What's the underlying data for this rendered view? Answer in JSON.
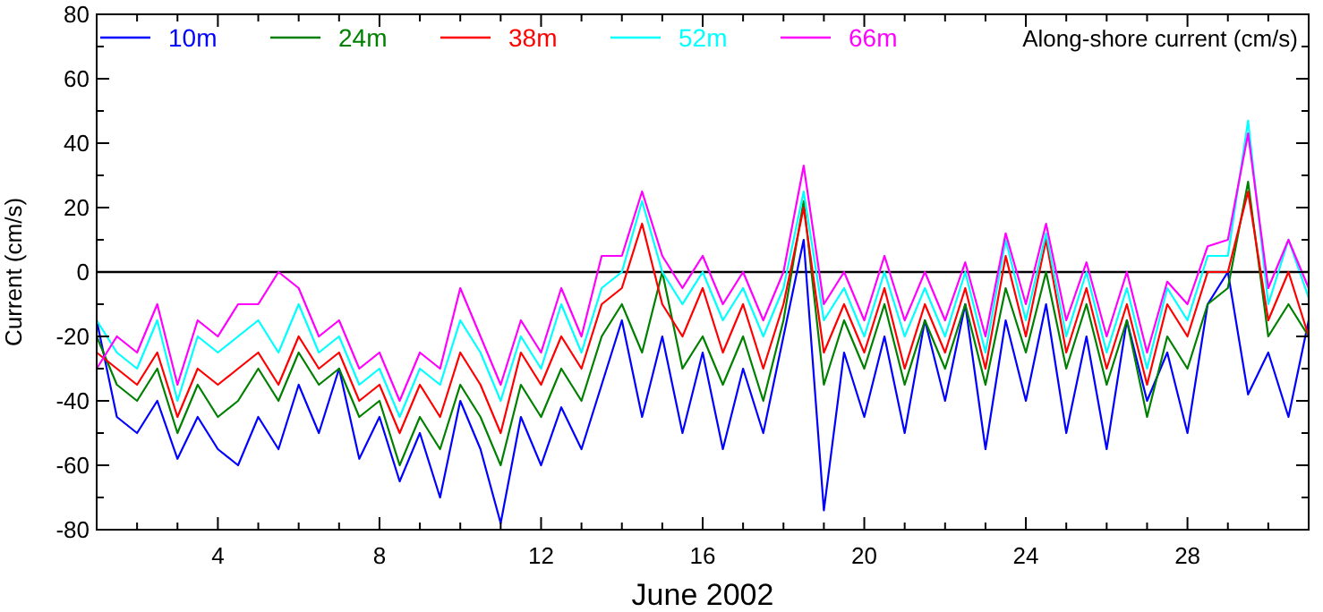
{
  "chart_data": {
    "type": "line",
    "xlabel": "June 2002",
    "ylabel": "Current (cm/s)",
    "annotations": [
      "Along-shore current (cm/s)"
    ],
    "x": [
      1,
      1.5,
      2,
      2.5,
      3,
      3.5,
      4,
      4.5,
      5,
      5.5,
      6,
      6.5,
      7,
      7.5,
      8,
      8.5,
      9,
      9.5,
      10,
      10.5,
      11,
      11.5,
      12,
      12.5,
      13,
      13.5,
      14,
      14.5,
      15,
      15.5,
      16,
      16.5,
      17,
      17.5,
      18,
      18.5,
      19,
      19.5,
      20,
      20.5,
      21,
      21.5,
      22,
      22.5,
      23,
      23.5,
      24,
      24.5,
      25,
      25.5,
      26,
      26.5,
      27,
      27.5,
      28,
      28.5,
      29,
      29.5,
      30,
      30.5,
      31
    ],
    "series": [
      {
        "name": "10m",
        "color": "#0000ff",
        "values": [
          -15,
          -45,
          -50,
          -40,
          -58,
          -45,
          -55,
          -60,
          -45,
          -55,
          -35,
          -50,
          -30,
          -58,
          -45,
          -65,
          -50,
          -70,
          -40,
          -55,
          -78,
          -45,
          -60,
          -42,
          -55,
          -35,
          -15,
          -45,
          -20,
          -50,
          -25,
          -55,
          -30,
          -50,
          -20,
          10,
          -74,
          -25,
          -45,
          -20,
          -50,
          -15,
          -40,
          -10,
          -55,
          -15,
          -40,
          -10,
          -50,
          -20,
          -55,
          -15,
          -40,
          -25,
          -50,
          -10,
          0,
          -38,
          -25,
          -45,
          -15
        ]
      },
      {
        "name": "24m",
        "color": "#008000",
        "values": [
          -20,
          -35,
          -40,
          -30,
          -50,
          -35,
          -45,
          -40,
          -30,
          -40,
          -25,
          -35,
          -30,
          -45,
          -40,
          -60,
          -45,
          -55,
          -35,
          -45,
          -60,
          -35,
          -45,
          -30,
          -40,
          -20,
          -10,
          -25,
          0,
          -30,
          -20,
          -35,
          -20,
          -40,
          -15,
          22,
          -35,
          -15,
          -30,
          -10,
          -35,
          -15,
          -30,
          -10,
          -35,
          -5,
          -25,
          0,
          -30,
          -10,
          -35,
          -15,
          -45,
          -20,
          -30,
          -10,
          -5,
          28,
          -20,
          -10,
          -20
        ]
      },
      {
        "name": "38m",
        "color": "#ff0000",
        "values": [
          -25,
          -30,
          -35,
          -25,
          -45,
          -30,
          -35,
          -30,
          -25,
          -35,
          -20,
          -30,
          -25,
          -40,
          -35,
          -50,
          -35,
          -45,
          -25,
          -35,
          -50,
          -25,
          -35,
          -20,
          -30,
          -10,
          -5,
          15,
          -10,
          -20,
          -5,
          -25,
          -10,
          -30,
          -10,
          20,
          -25,
          -10,
          -25,
          -5,
          -30,
          -10,
          -25,
          -5,
          -30,
          5,
          -20,
          10,
          -25,
          -5,
          -30,
          -10,
          -35,
          -10,
          -20,
          0,
          0,
          25,
          -15,
          0,
          -20
        ]
      },
      {
        "name": "52m",
        "color": "#00ffff",
        "values": [
          -15,
          -25,
          -30,
          -15,
          -40,
          -20,
          -25,
          -20,
          -15,
          -25,
          -10,
          -25,
          -20,
          -35,
          -30,
          -45,
          -30,
          -35,
          -15,
          -25,
          -40,
          -20,
          -30,
          -10,
          -25,
          -5,
          0,
          22,
          0,
          -10,
          0,
          -15,
          -5,
          -20,
          -5,
          25,
          -15,
          -5,
          -20,
          0,
          -20,
          -5,
          -20,
          0,
          -25,
          10,
          -15,
          12,
          -20,
          0,
          -25,
          -5,
          -30,
          -5,
          -15,
          5,
          5,
          47,
          -10,
          10,
          -8
        ]
      },
      {
        "name": "66m",
        "color": "#ff00ff",
        "values": [
          -30,
          -20,
          -25,
          -10,
          -35,
          -15,
          -20,
          -10,
          -10,
          0,
          -5,
          -20,
          -15,
          -30,
          -25,
          -40,
          -25,
          -30,
          -5,
          -20,
          -35,
          -15,
          -25,
          -5,
          -20,
          5,
          5,
          25,
          5,
          -5,
          5,
          -10,
          0,
          -15,
          0,
          33,
          -10,
          0,
          -15,
          5,
          -15,
          0,
          -15,
          3,
          -20,
          12,
          -10,
          15,
          -15,
          3,
          -20,
          0,
          -25,
          -3,
          -10,
          8,
          10,
          43,
          -5,
          10,
          -5
        ]
      }
    ],
    "xlim": [
      1,
      31
    ],
    "xticks": [
      {
        "value": 1,
        "label": null
      },
      {
        "value": 2,
        "label": null
      },
      {
        "value": 3,
        "label": null
      },
      4,
      {
        "value": 5,
        "label": null
      },
      {
        "value": 6,
        "label": null
      },
      {
        "value": 7,
        "label": null
      },
      8,
      {
        "value": 9,
        "label": null
      },
      {
        "value": 10,
        "label": null
      },
      {
        "value": 11,
        "label": null
      },
      12,
      {
        "value": 13,
        "label": null
      },
      {
        "value": 14,
        "label": null
      },
      {
        "value": 15,
        "label": null
      },
      16,
      {
        "value": 17,
        "label": null
      },
      {
        "value": 18,
        "label": null
      },
      {
        "value": 19,
        "label": null
      },
      20,
      {
        "value": 21,
        "label": null
      },
      {
        "value": 22,
        "label": null
      },
      {
        "value": 23,
        "label": null
      },
      24,
      {
        "value": 25,
        "label": null
      },
      {
        "value": 26,
        "label": null
      },
      {
        "value": 27,
        "label": null
      },
      28,
      {
        "value": 29,
        "label": null
      },
      {
        "value": 30,
        "label": null
      },
      {
        "value": 31,
        "label": null
      }
    ],
    "ylim": [
      -80,
      80
    ],
    "yticks": [
      -80,
      {
        "value": -70,
        "label": null
      },
      -60,
      {
        "value": -50,
        "label": null
      },
      -40,
      {
        "value": -30,
        "label": null
      },
      -20,
      {
        "value": -10,
        "label": null
      },
      0,
      {
        "value": 10,
        "label": null
      },
      20,
      {
        "value": 30,
        "label": null
      },
      40,
      {
        "value": 50,
        "label": null
      },
      60,
      {
        "value": 70,
        "label": null
      },
      80
    ],
    "ref_lines": [
      {
        "axis": "y",
        "value": 0,
        "color": "#000000"
      }
    ],
    "legend": "top",
    "grid": false,
    "line_style": "solid"
  }
}
